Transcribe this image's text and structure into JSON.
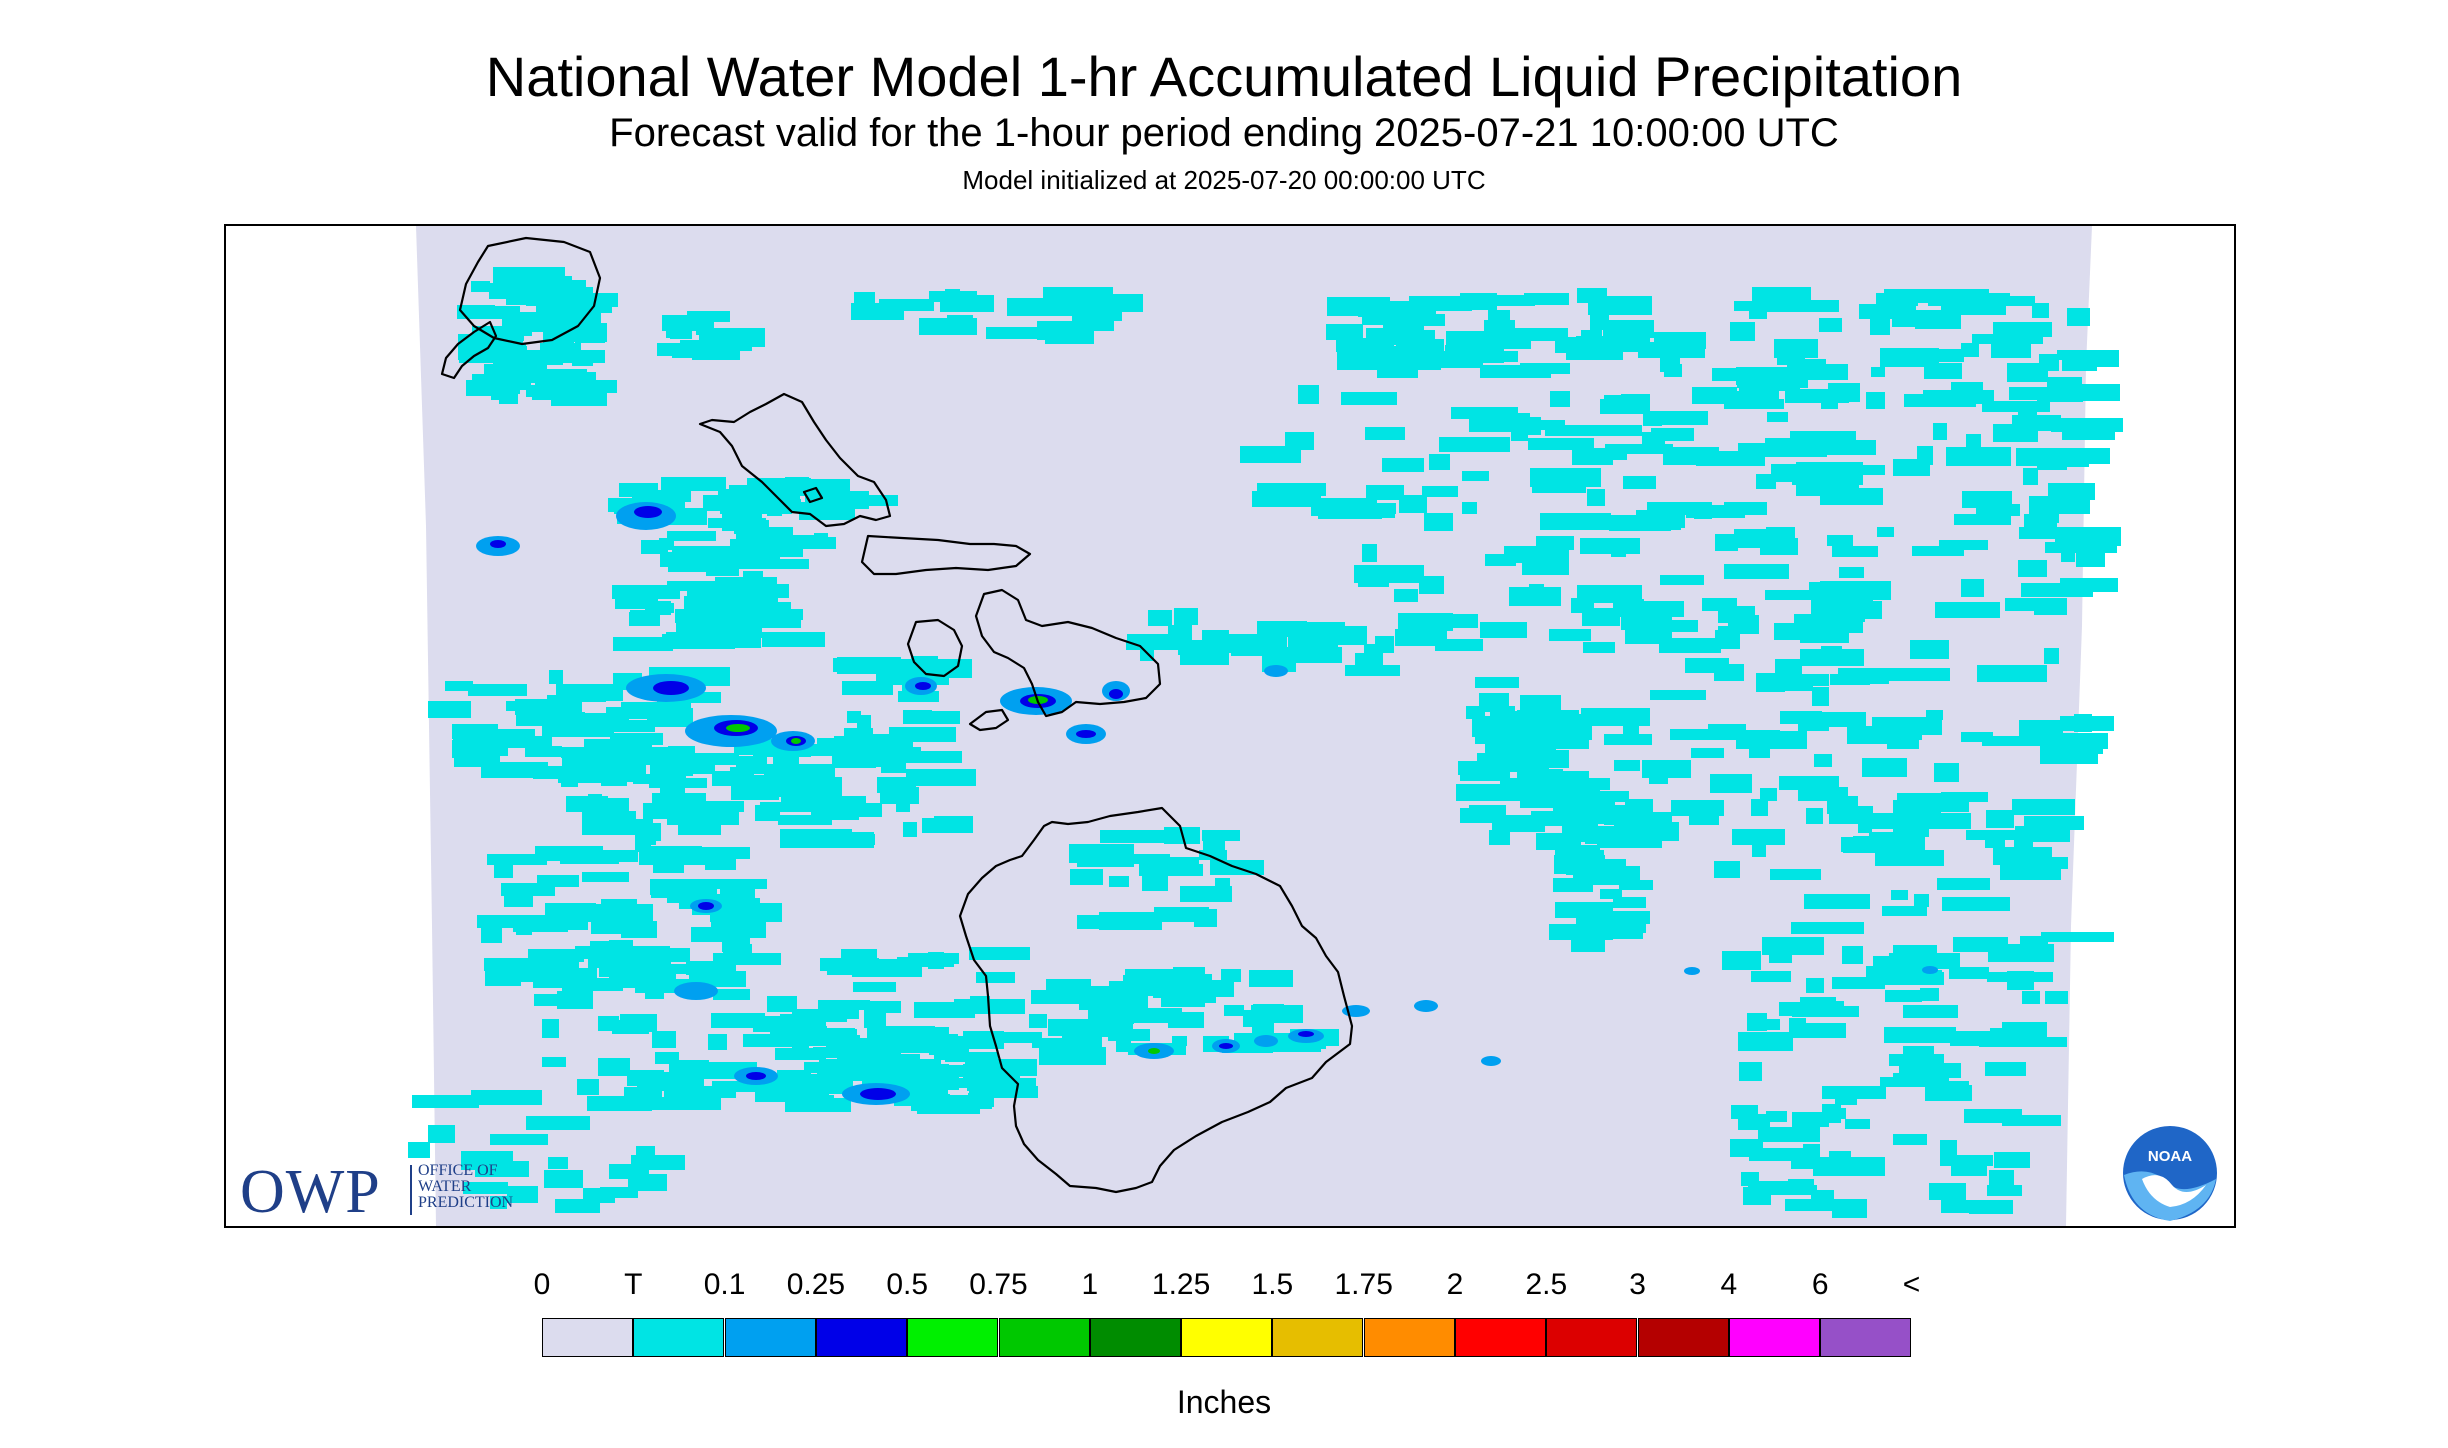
{
  "header": {
    "title": "National Water Model 1-hr Accumulated Liquid Precipitation",
    "subtitle": "Forecast valid for the 1-hour period ending 2025-07-21 10:00:00 UTC",
    "init": "Model initialized at 2025-07-20 00:00:00 UTC"
  },
  "logos": {
    "owp_short": "OWP",
    "owp_line1": "OFFICE OF",
    "owp_line2": "WATER",
    "owp_line3": "PREDICTION",
    "noaa": "NOAA"
  },
  "legend": {
    "units": "Inches",
    "tick_labels": [
      "0",
      "T",
      "0.1",
      "0.25",
      "0.5",
      "0.75",
      "1",
      "1.25",
      "1.5",
      "1.75",
      "2",
      "2.5",
      "3",
      "4",
      "6",
      "<"
    ],
    "colors": [
      "#dcdcee",
      "#00e4e4",
      "#00a0f0",
      "#0000e8",
      "#00f000",
      "#00c800",
      "#008c00",
      "#ffff00",
      "#e6be00",
      "#ff8c00",
      "#ff0000",
      "#dc0000",
      "#b40000",
      "#ff00ff",
      "#9650c8"
    ]
  },
  "map": {
    "region": "Hawaii",
    "background_color": "#dcdcee",
    "light_color": "#00e4e4",
    "medium_color": "#00a0f0",
    "heavy_color": "#0000e8",
    "peak_color": "#00c800",
    "coastline_color": "#000000"
  }
}
